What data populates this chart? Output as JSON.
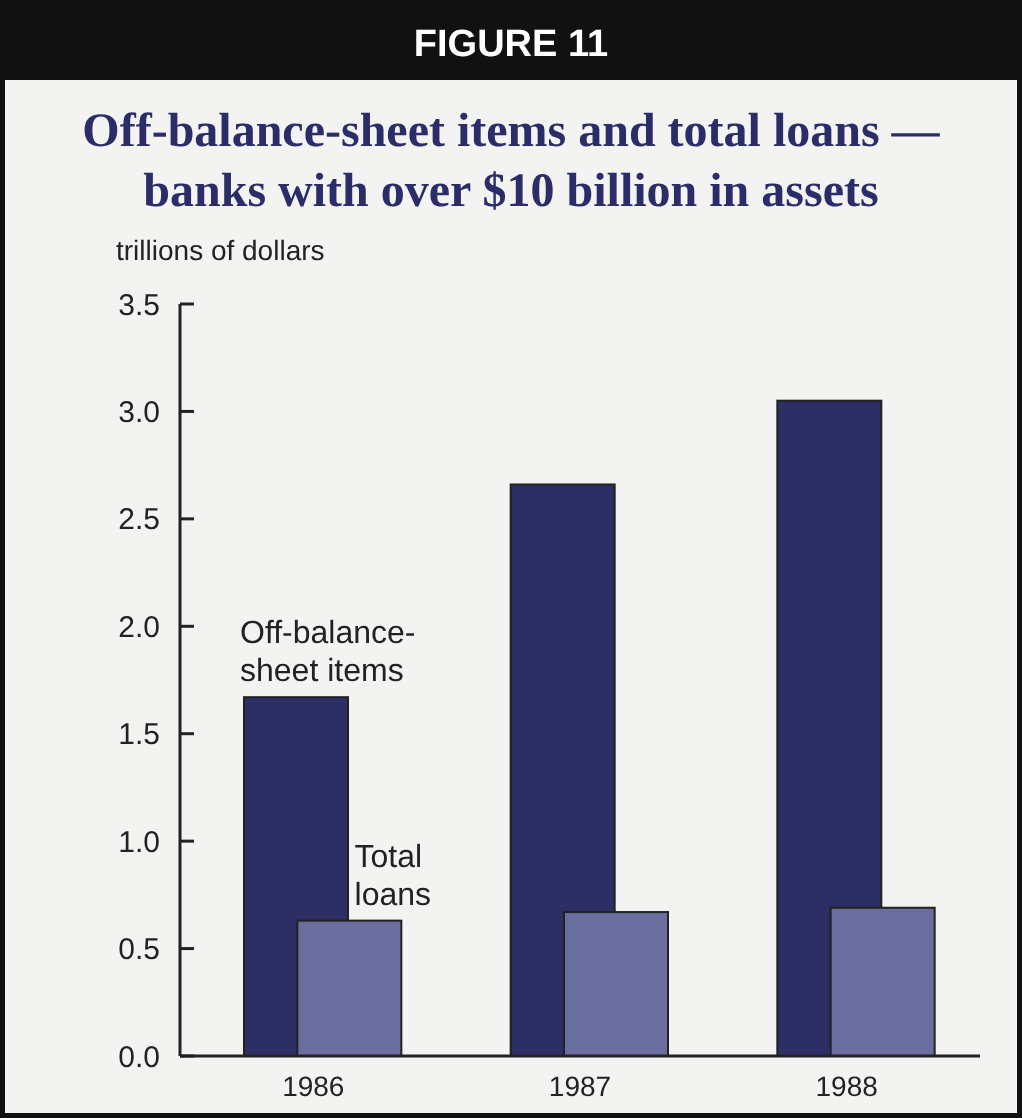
{
  "chart_data": {
    "type": "bar",
    "title": "FIGURE 11",
    "subtitle": "Off-balance-sheet items and total loans — banks with over $10 billion in assets",
    "ylabel": "trillions of dollars",
    "categories": [
      "1986",
      "1987",
      "1988"
    ],
    "series": [
      {
        "name": "Off-balance-sheet items",
        "color": "#2d2e63",
        "values": [
          1.67,
          2.66,
          3.05
        ]
      },
      {
        "name": "Total loans",
        "color": "#6a6e9f",
        "values": [
          0.63,
          0.67,
          0.69
        ]
      }
    ],
    "ylim": [
      0,
      3.5
    ],
    "yticks": [
      {
        "value": 0,
        "label": "0.0"
      },
      {
        "value": 0.5,
        "label": "0.5"
      },
      {
        "value": 1,
        "label": "1.0"
      },
      {
        "value": 1.5,
        "label": "1.5"
      },
      {
        "value": 2,
        "label": "2.0"
      },
      {
        "value": 2.5,
        "label": "2.5"
      },
      {
        "value": 3,
        "label": "3.0"
      },
      {
        "value": 3.5,
        "label": "3.5"
      }
    ],
    "grid": false
  }
}
